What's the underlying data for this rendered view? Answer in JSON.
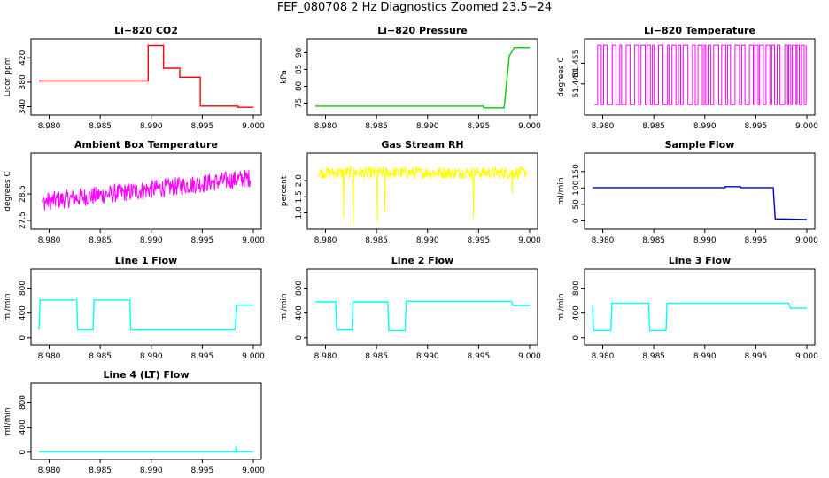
{
  "title": "FEF_080708  2 Hz Diagnostics Zoomed 23.5−24",
  "x_ticks": [
    "8.980",
    "8.985",
    "8.990",
    "8.995",
    "9.000"
  ],
  "colors": {
    "co2": "#ff0000",
    "pressure": "#00cc00",
    "temperature": "#ff00ff",
    "ambient": "#ff00ff",
    "rh": "#ffff00",
    "sample": "#0000cc",
    "line": "#00ffff"
  },
  "chart_data": [
    {
      "type": "line",
      "title": "Li−820 CO2",
      "ylabel": "Licor ppm",
      "color": "#ff0000",
      "xlim": [
        8.979,
        9.0
      ],
      "ylim": [
        332,
        445
      ],
      "yticks": [
        340,
        380,
        420
      ],
      "series": [
        {
          "kind": "step",
          "points": [
            [
              8.979,
              382
            ],
            [
              8.9897,
              382
            ],
            [
              8.9897,
              440
            ],
            [
              8.9912,
              440
            ],
            [
              8.9912,
              403
            ],
            [
              8.9928,
              403
            ],
            [
              8.9928,
              388
            ],
            [
              8.9948,
              388
            ],
            [
              8.9948,
              341
            ],
            [
              8.9985,
              341
            ],
            [
              8.9985,
              339
            ],
            [
              9.0,
              339
            ]
          ]
        }
      ]
    },
    {
      "type": "line",
      "title": "Li−820 Pressure",
      "ylabel": "kPa",
      "color": "#00cc00",
      "xlim": [
        8.979,
        9.0
      ],
      "ylim": [
        72.5,
        93
      ],
      "yticks": [
        75,
        80,
        85,
        90
      ],
      "series": [
        {
          "kind": "step",
          "points": [
            [
              8.979,
              74.1
            ],
            [
              8.9955,
              74.1
            ],
            [
              8.9955,
              73.6
            ],
            [
              8.9975,
              73.6
            ],
            [
              8.998,
              89
            ],
            [
              8.9985,
              91.5
            ],
            [
              9.0,
              91.5
            ]
          ]
        }
      ]
    },
    {
      "type": "line",
      "title": "Li−820 Temperature",
      "ylabel": "degrees C",
      "color": "#ff00ff",
      "xlim": [
        8.979,
        9.0
      ],
      "ylim": [
        51.42,
        51.47
      ],
      "yticks": [
        51.44,
        51.455
      ],
      "yticklabels": [
        "51.440",
        "51.455"
      ],
      "series": [
        {
          "kind": "toggle",
          "low": 51.425,
          "high": 51.468
        }
      ]
    },
    {
      "type": "line",
      "title": "Ambient Box Temperature",
      "ylabel": "degrees C",
      "color": "#ff00ff",
      "xlim": [
        8.979,
        9.0
      ],
      "ylim": [
        27.3,
        29.9
      ],
      "yticks": [
        27.5,
        28.5
      ],
      "series": [
        {
          "kind": "noisy-trend",
          "start": 28.2,
          "end": 29.1,
          "amp": 0.35
        }
      ]
    },
    {
      "type": "line",
      "title": "Gas Stream RH",
      "ylabel": "percent",
      "color": "#ffff00",
      "xlim": [
        8.979,
        9.0
      ],
      "ylim": [
        0.6,
        2.75
      ],
      "yticks": [
        1.0,
        1.5,
        2.0
      ],
      "yticklabels": [
        "1.0",
        "1.5",
        "2.0"
      ],
      "series": [
        {
          "kind": "noisy-flat",
          "level": 2.25,
          "amp": 0.18,
          "dips": [
            [
              8.9818,
              0.85
            ],
            [
              8.9827,
              0.6
            ],
            [
              8.9851,
              0.7
            ],
            [
              8.9858,
              1.0
            ],
            [
              8.9945,
              0.85
            ],
            [
              8.9983,
              1.6
            ]
          ]
        }
      ]
    },
    {
      "type": "line",
      "title": "Sample Flow",
      "ylabel": "ml/min",
      "color": "#0000cc",
      "xlim": [
        8.979,
        9.0
      ],
      "ylim": [
        -15,
        195
      ],
      "yticks": [
        0,
        50,
        100,
        150
      ],
      "series": [
        {
          "kind": "step",
          "points": [
            [
              8.979,
              101
            ],
            [
              8.992,
              101
            ],
            [
              8.992,
              104
            ],
            [
              8.9935,
              104
            ],
            [
              8.9935,
              101
            ],
            [
              8.9967,
              101
            ],
            [
              8.9969,
              6
            ],
            [
              9.0,
              4
            ]
          ]
        }
      ]
    },
    {
      "type": "line",
      "title": "Line 1 Flow",
      "ylabel": "ml/min",
      "color": "#00ffff",
      "xlim": [
        8.979,
        9.0
      ],
      "ylim": [
        -60,
        1050
      ],
      "yticks": [
        0,
        400,
        800
      ],
      "series": [
        {
          "kind": "step",
          "points": [
            [
              8.979,
              130
            ],
            [
              8.9791,
              610
            ],
            [
              8.9827,
              610
            ],
            [
              8.9828,
              130
            ],
            [
              8.9843,
              130
            ],
            [
              8.9844,
              610
            ],
            [
              8.9879,
              610
            ],
            [
              8.988,
              130
            ],
            [
              8.9982,
              130
            ],
            [
              8.9984,
              530
            ],
            [
              9.0,
              530
            ]
          ]
        }
      ]
    },
    {
      "type": "line",
      "title": "Line 2 Flow",
      "ylabel": "ml/min",
      "color": "#00ffff",
      "xlim": [
        8.979,
        9.0
      ],
      "ylim": [
        -60,
        1050
      ],
      "yticks": [
        0,
        400,
        800
      ],
      "series": [
        {
          "kind": "step",
          "points": [
            [
              8.979,
              580
            ],
            [
              8.981,
              580
            ],
            [
              8.9811,
              130
            ],
            [
              8.9826,
              130
            ],
            [
              8.9827,
              580
            ],
            [
              8.9861,
              580
            ],
            [
              8.9862,
              120
            ],
            [
              8.9878,
              120
            ],
            [
              8.9879,
              590
            ],
            [
              8.9982,
              590
            ],
            [
              8.9984,
              520
            ],
            [
              9.0,
              520
            ]
          ]
        }
      ]
    },
    {
      "type": "line",
      "title": "Line 3 Flow",
      "ylabel": "ml/min",
      "color": "#00ffff",
      "xlim": [
        8.979,
        9.0
      ],
      "ylim": [
        -60,
        1050
      ],
      "yticks": [
        0,
        400,
        800
      ],
      "series": [
        {
          "kind": "step",
          "points": [
            [
              8.979,
              530
            ],
            [
              8.9791,
              120
            ],
            [
              8.9808,
              120
            ],
            [
              8.9809,
              560
            ],
            [
              8.9845,
              560
            ],
            [
              8.9846,
              120
            ],
            [
              8.9862,
              120
            ],
            [
              8.9863,
              560
            ],
            [
              8.9982,
              560
            ],
            [
              8.9984,
              480
            ],
            [
              9.0,
              480
            ]
          ]
        }
      ]
    },
    {
      "type": "line",
      "title": "Line 4 (LT) Flow",
      "ylabel": "ml/min",
      "color": "#00ffff",
      "xlim": [
        8.979,
        9.0
      ],
      "ylim": [
        -60,
        1050
      ],
      "yticks": [
        0,
        400,
        800
      ],
      "series": [
        {
          "kind": "step",
          "points": [
            [
              8.979,
              5
            ],
            [
              8.9983,
              5
            ],
            [
              8.9983,
              100
            ],
            [
              8.9984,
              5
            ],
            [
              9.0,
              5
            ]
          ]
        }
      ]
    }
  ]
}
